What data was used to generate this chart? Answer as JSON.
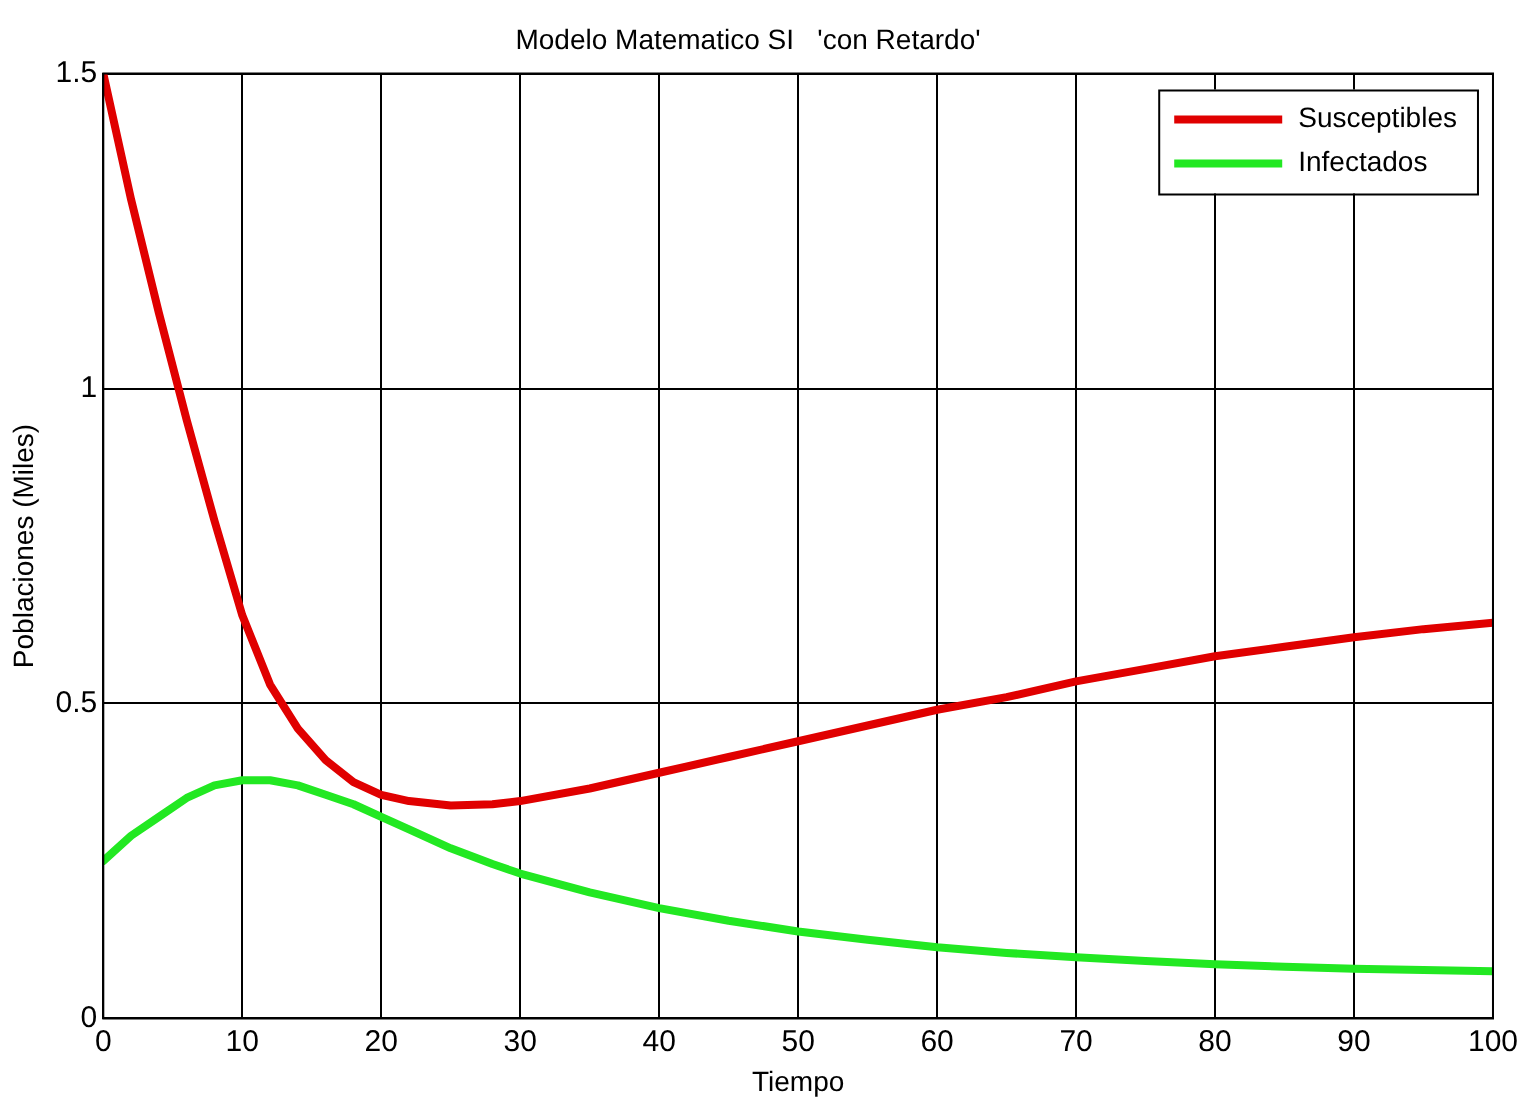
{
  "chart_data": {
    "type": "line",
    "title": "Modelo Matematico SI   'con Retardo'",
    "xlabel": "Tiempo",
    "ylabel": "Poblaciones (Miles)",
    "x": [
      0,
      2,
      4,
      6,
      8,
      10,
      12,
      14,
      16,
      18,
      20,
      22,
      25,
      28,
      30,
      35,
      40,
      45,
      50,
      55,
      60,
      65,
      70,
      75,
      80,
      85,
      90,
      95,
      100
    ],
    "series": [
      {
        "name": "Susceptibles",
        "color": "#e00000",
        "values": [
          1.5,
          1.3,
          1.12,
          0.95,
          0.79,
          0.64,
          0.53,
          0.46,
          0.41,
          0.375,
          0.355,
          0.345,
          0.338,
          0.34,
          0.345,
          0.365,
          0.39,
          0.415,
          0.44,
          0.465,
          0.49,
          0.51,
          0.535,
          0.555,
          0.575,
          0.59,
          0.605,
          0.618,
          0.628
        ]
      },
      {
        "name": "Infectados",
        "color": "#22e822",
        "values": [
          0.25,
          0.29,
          0.32,
          0.35,
          0.37,
          0.378,
          0.378,
          0.37,
          0.355,
          0.34,
          0.32,
          0.3,
          0.27,
          0.245,
          0.23,
          0.2,
          0.175,
          0.155,
          0.138,
          0.125,
          0.113,
          0.104,
          0.097,
          0.091,
          0.086,
          0.082,
          0.079,
          0.077,
          0.075
        ]
      }
    ],
    "xlim": [
      0,
      100
    ],
    "xticks": [
      0,
      10,
      20,
      30,
      40,
      50,
      60,
      70,
      80,
      90,
      100
    ],
    "ylim": [
      0,
      1.5
    ],
    "yticks": [
      0,
      0.5,
      1,
      1.5
    ],
    "grid": true,
    "legend": "top right",
    "marker": "none",
    "line_style": "solid"
  }
}
